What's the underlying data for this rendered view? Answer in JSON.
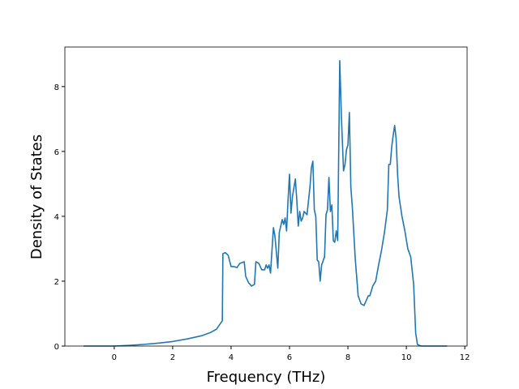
{
  "chart_data": {
    "type": "line",
    "x_label": "Frequency (THz)",
    "y_label": "Density of States",
    "x": [
      -1.05,
      0,
      0.5,
      1,
      1.5,
      2,
      2.5,
      3,
      3.3,
      3.5,
      3.7,
      3.72,
      3.8,
      3.9,
      4.0,
      4.1,
      4.2,
      4.3,
      4.45,
      4.5,
      4.6,
      4.7,
      4.8,
      4.85,
      4.95,
      5.05,
      5.15,
      5.2,
      5.25,
      5.3,
      5.35,
      5.45,
      5.5,
      5.6,
      5.65,
      5.75,
      5.8,
      5.85,
      5.9,
      5.95,
      6.0,
      6.05,
      6.1,
      6.2,
      6.25,
      6.3,
      6.35,
      6.4,
      6.45,
      6.5,
      6.6,
      6.7,
      6.75,
      6.8,
      6.85,
      6.9,
      6.95,
      7.0,
      7.05,
      7.1,
      7.2,
      7.25,
      7.3,
      7.35,
      7.4,
      7.45,
      7.5,
      7.55,
      7.6,
      7.65,
      7.72,
      7.78,
      7.85,
      7.9,
      7.95,
      8.0,
      8.05,
      8.1,
      8.15,
      8.25,
      8.35,
      8.45,
      8.55,
      8.6,
      8.7,
      8.75,
      8.85,
      8.95,
      9.05,
      9.15,
      9.25,
      9.35,
      9.4,
      9.45,
      9.5,
      9.55,
      9.6,
      9.65,
      9.7,
      9.75,
      9.85,
      9.95,
      10.05,
      10.15,
      10.25,
      10.32,
      10.38,
      10.5,
      11.4
    ],
    "series": [
      {
        "color": "#1f77b4",
        "values": [
          0,
          0,
          0.02,
          0.05,
          0.09,
          0.14,
          0.22,
          0.32,
          0.42,
          0.52,
          0.78,
          2.85,
          2.88,
          2.8,
          2.45,
          2.45,
          2.42,
          2.55,
          2.6,
          2.15,
          1.95,
          1.85,
          1.9,
          2.6,
          2.55,
          2.35,
          2.35,
          2.5,
          2.4,
          2.5,
          2.25,
          3.65,
          3.4,
          2.4,
          3.5,
          3.9,
          3.75,
          3.95,
          3.55,
          4.5,
          5.3,
          4.1,
          4.6,
          5.15,
          4.5,
          3.7,
          4.15,
          3.85,
          3.95,
          4.15,
          4.05,
          4.9,
          5.5,
          5.7,
          4.2,
          4.0,
          2.65,
          2.6,
          2.0,
          2.5,
          2.75,
          4.05,
          4.2,
          5.2,
          4.15,
          4.35,
          3.25,
          3.2,
          3.55,
          3.25,
          8.8,
          7.0,
          5.4,
          5.6,
          6.05,
          6.2,
          7.2,
          4.9,
          4.3,
          2.7,
          1.55,
          1.3,
          1.25,
          1.35,
          1.55,
          1.55,
          1.85,
          2.0,
          2.5,
          2.95,
          3.5,
          4.2,
          5.6,
          5.6,
          6.15,
          6.5,
          6.8,
          6.4,
          5.3,
          4.6,
          4.0,
          3.55,
          3.0,
          2.75,
          1.9,
          0.4,
          0.05,
          0,
          0
        ]
      }
    ],
    "xlim": [
      -1.69,
      12.08
    ],
    "ylim": [
      0,
      9.22
    ],
    "xticks": [
      0,
      2,
      4,
      6,
      8,
      10,
      12
    ],
    "yticks": [
      0,
      2,
      4,
      6,
      8
    ]
  }
}
